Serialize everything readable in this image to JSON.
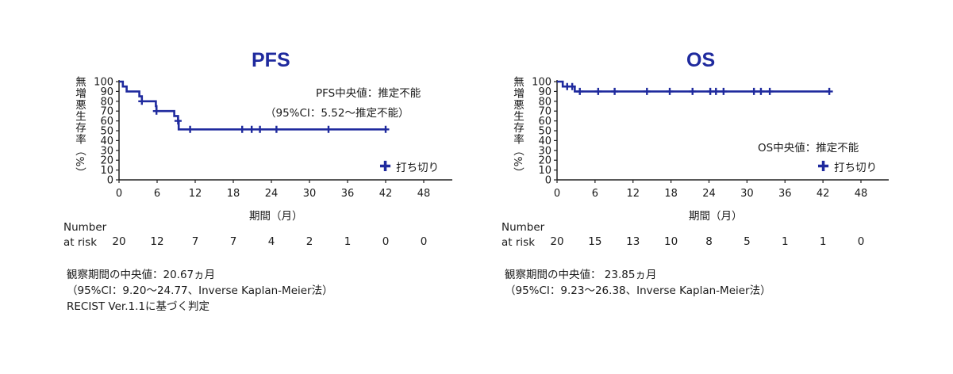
{
  "panels": [
    {
      "title": "PFS",
      "ylabel": "無増悪生存率（%）",
      "xlabel": "期間（月）",
      "annotation_line1": "PFS中央値：推定不能",
      "annotation_line2": "（95%CI：5.52～推定不能）",
      "legend_label": "打ち切り",
      "legend_marker": "✚",
      "risk_header_line1": "Number",
      "risk_header_line2": "at risk",
      "at_risk": [
        "20",
        "12",
        "7",
        "7",
        "4",
        "2",
        "1",
        "0",
        "0"
      ],
      "notes": [
        "観察期間の中央値：20.67ヵ月",
        "（95%CI：9.20～24.77、Inverse Kaplan-Meier法）",
        "RECIST Ver.1.1に基づく判定"
      ]
    },
    {
      "title": "OS",
      "ylabel": "無増悪生存率（%）",
      "xlabel": "期間（月）",
      "annotation_line1": "OS中央値：推定不能",
      "annotation_line2": "",
      "legend_label": "打ち切り",
      "legend_marker": "✚",
      "risk_header_line1": "Number",
      "risk_header_line2": "at risk",
      "at_risk": [
        "20",
        "15",
        "13",
        "10",
        "8",
        "5",
        "1",
        "1",
        "0"
      ],
      "notes": [
        "観察期間の中央値： 23.85ヵ月",
        "（95%CI：9.23～26.38、Inverse Kaplan-Meier法）"
      ]
    }
  ],
  "chart_data": [
    {
      "type": "line",
      "subtype": "kaplan-meier",
      "title": "PFS",
      "xlabel": "期間（月）",
      "ylabel": "無増悪生存率（%）",
      "xlim": [
        0,
        48
      ],
      "ylim": [
        0,
        100
      ],
      "xticks": [
        0,
        6,
        12,
        18,
        24,
        30,
        36,
        42,
        48
      ],
      "yticks": [
        0,
        10,
        20,
        30,
        40,
        50,
        60,
        70,
        80,
        90,
        100
      ],
      "line_color": "#1f2a9e",
      "steps": [
        [
          0,
          100
        ],
        [
          0.6,
          95
        ],
        [
          1.2,
          90
        ],
        [
          3.2,
          85
        ],
        [
          3.6,
          80
        ],
        [
          5.8,
          75
        ],
        [
          5.9,
          70
        ],
        [
          8.7,
          65
        ],
        [
          9.3,
          60
        ],
        [
          9.4,
          51.4
        ],
        [
          42,
          51.4
        ]
      ],
      "censored": [
        [
          3.6,
          80
        ],
        [
          5.9,
          70
        ],
        [
          9.3,
          60
        ],
        [
          11.2,
          51.4
        ],
        [
          19.4,
          51.4
        ],
        [
          20.9,
          51.4
        ],
        [
          22.2,
          51.4
        ],
        [
          24.8,
          51.4
        ],
        [
          33,
          51.4
        ],
        [
          42,
          51.4
        ]
      ],
      "at_risk_times": [
        0,
        6,
        12,
        18,
        24,
        30,
        36,
        42,
        48
      ]
    },
    {
      "type": "line",
      "subtype": "kaplan-meier",
      "title": "OS",
      "xlabel": "期間（月）",
      "ylabel": "無増悪生存率（%）",
      "xlim": [
        0,
        48
      ],
      "ylim": [
        0,
        100
      ],
      "xticks": [
        0,
        6,
        12,
        18,
        24,
        30,
        36,
        42,
        48
      ],
      "yticks": [
        0,
        10,
        20,
        30,
        40,
        50,
        60,
        70,
        80,
        90,
        100
      ],
      "line_color": "#1f2a9e",
      "steps": [
        [
          0,
          100
        ],
        [
          0.9,
          100
        ],
        [
          0.9,
          95
        ],
        [
          2.8,
          95
        ],
        [
          2.8,
          90
        ],
        [
          43,
          90
        ]
      ],
      "censored": [
        [
          1.6,
          95
        ],
        [
          2.4,
          95
        ],
        [
          3.6,
          90
        ],
        [
          6.5,
          90
        ],
        [
          9.1,
          90
        ],
        [
          14.2,
          90
        ],
        [
          17.8,
          90
        ],
        [
          21.4,
          90
        ],
        [
          24.2,
          90
        ],
        [
          25.1,
          90
        ],
        [
          26.3,
          90
        ],
        [
          31.1,
          90
        ],
        [
          32.2,
          90
        ],
        [
          33.6,
          90
        ],
        [
          43,
          90
        ]
      ],
      "at_risk_times": [
        0,
        6,
        12,
        18,
        24,
        30,
        36,
        42,
        48
      ]
    }
  ]
}
